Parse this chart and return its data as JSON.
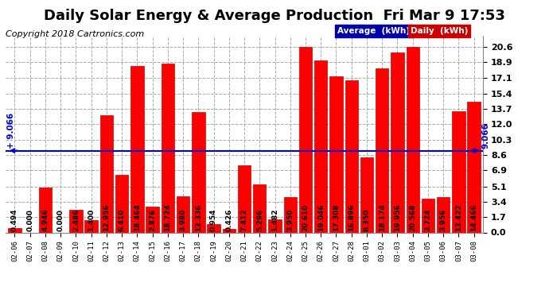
{
  "title": "Daily Solar Energy & Average Production  Fri Mar 9 17:53",
  "copyright": "Copyright 2018 Cartronics.com",
  "average_label": "Average  (kWh)",
  "daily_label": "Daily  (kWh)",
  "average_value": 9.066,
  "categories": [
    "02-06",
    "02-07",
    "02-08",
    "02-09",
    "02-10",
    "02-11",
    "02-12",
    "02-13",
    "02-14",
    "02-15",
    "02-16",
    "02-17",
    "02-18",
    "02-19",
    "02-20",
    "02-21",
    "02-22",
    "02-23",
    "02-24",
    "02-25",
    "02-26",
    "02-27",
    "02-28",
    "03-01",
    "03-02",
    "03-03",
    "03-04",
    "03-05",
    "03-06",
    "03-07",
    "03-08"
  ],
  "values": [
    0.494,
    0.0,
    4.946,
    0.0,
    2.486,
    1.4,
    12.956,
    6.41,
    18.464,
    2.876,
    18.724,
    3.98,
    13.336,
    0.954,
    0.426,
    7.412,
    5.296,
    1.482,
    3.95,
    20.61,
    19.046,
    17.308,
    16.896,
    8.35,
    18.174,
    19.956,
    20.568,
    3.724,
    3.956,
    13.422,
    14.466
  ],
  "bar_color": "#ff0000",
  "bar_edge_color": "#cc0000",
  "average_line_color": "#0000dd",
  "background_color": "#ffffff",
  "plot_bg_color": "#ffffff",
  "title_fontsize": 13,
  "copyright_fontsize": 8,
  "tick_fontsize": 8,
  "value_fontsize": 6.5,
  "yticks": [
    0.0,
    1.7,
    3.4,
    5.1,
    6.9,
    8.6,
    10.3,
    12.0,
    13.7,
    15.4,
    17.1,
    18.9,
    20.6
  ],
  "ylim": [
    0.0,
    21.8
  ],
  "legend_avg_bg": "#0000aa",
  "legend_daily_bg": "#cc0000",
  "legend_text_color": "#ffffff"
}
